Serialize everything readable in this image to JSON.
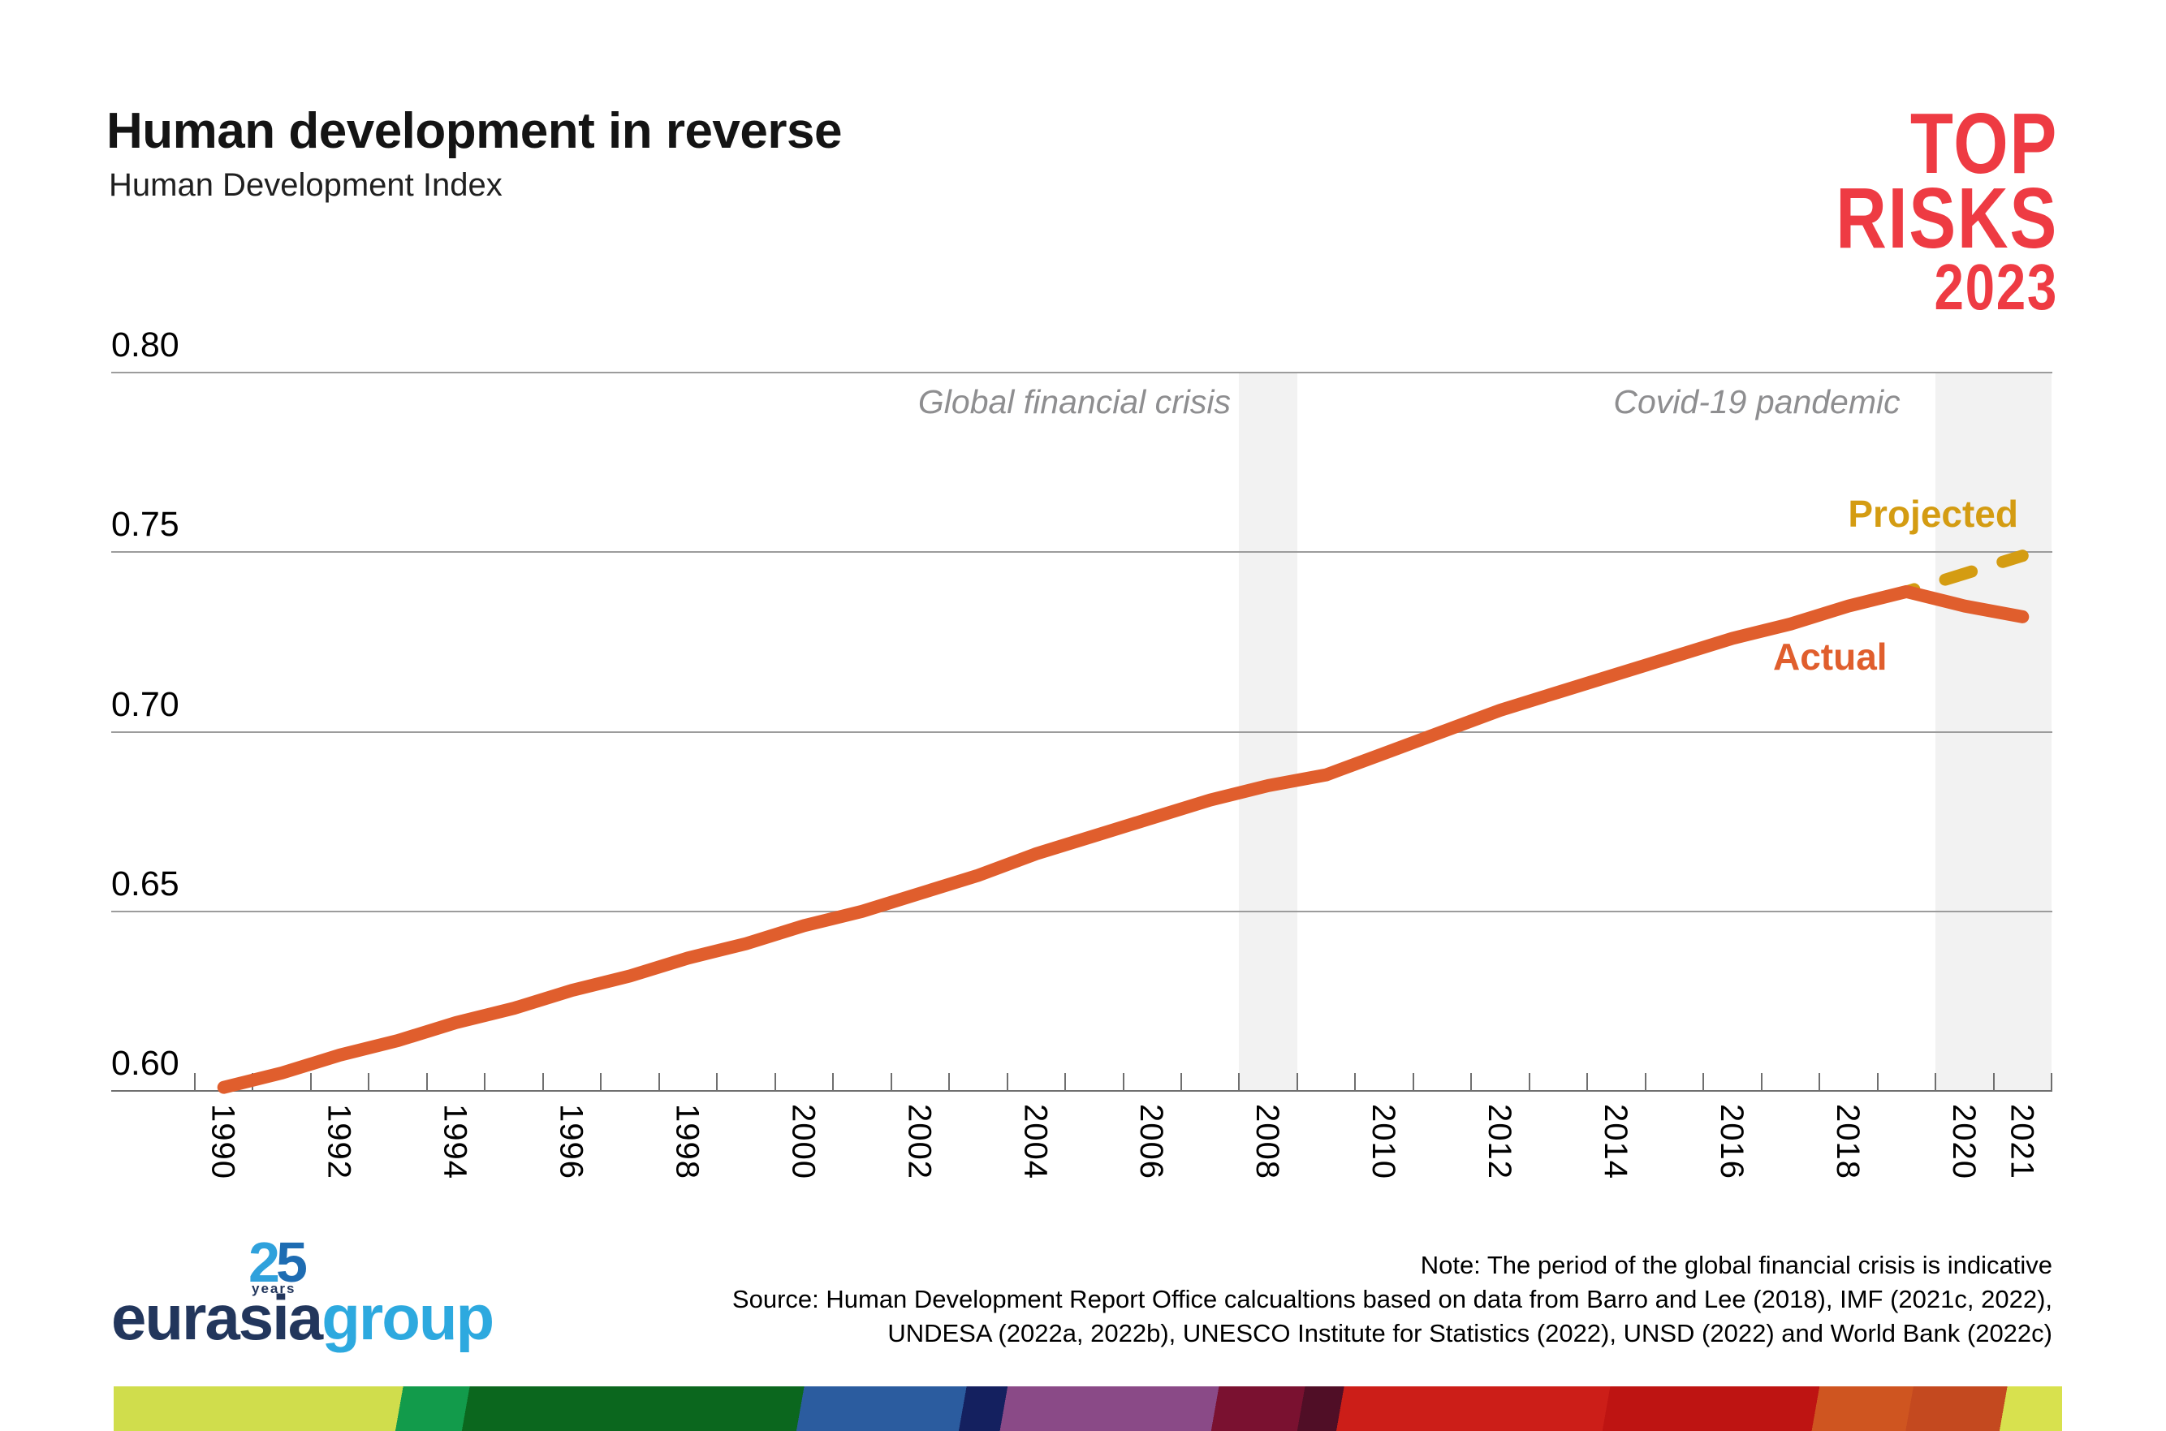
{
  "header": {
    "title": "Human development in reverse",
    "subtitle": "Human Development Index",
    "brand_logo": {
      "line1": "TOP",
      "line2": "RISKS",
      "line3": "2023",
      "color": "#ee3b43"
    }
  },
  "chart_data": {
    "type": "line",
    "title": "Human development in reverse",
    "subtitle": "Human Development Index",
    "ylabel": "Human Development Index",
    "ylim": [
      0.6,
      0.8
    ],
    "yticks": [
      0.6,
      0.65,
      0.7,
      0.75,
      0.8
    ],
    "ytick_labels": [
      "0.60",
      "0.65",
      "0.70",
      "0.75",
      "0.80"
    ],
    "x_label_years": [
      1990,
      1992,
      1994,
      1996,
      1998,
      2000,
      2002,
      2004,
      2006,
      2008,
      2010,
      2012,
      2014,
      2016,
      2018,
      2020,
      2021
    ],
    "years": [
      1990,
      1991,
      1992,
      1993,
      1994,
      1995,
      1996,
      1997,
      1998,
      1999,
      2000,
      2001,
      2002,
      2003,
      2004,
      2005,
      2006,
      2007,
      2008,
      2009,
      2010,
      2011,
      2012,
      2013,
      2014,
      2015,
      2016,
      2017,
      2018,
      2019,
      2020,
      2021
    ],
    "grid": "horizontal-only",
    "legend": "inline-labels",
    "series": [
      {
        "name": "Actual",
        "color": "#e05e2d",
        "style": "solid",
        "years": [
          1990,
          1991,
          1992,
          1993,
          1994,
          1995,
          1996,
          1997,
          1998,
          1999,
          2000,
          2001,
          2002,
          2003,
          2004,
          2005,
          2006,
          2007,
          2008,
          2009,
          2010,
          2011,
          2012,
          2013,
          2014,
          2015,
          2016,
          2017,
          2018,
          2019,
          2020,
          2021
        ],
        "values": [
          0.601,
          0.605,
          0.61,
          0.614,
          0.619,
          0.623,
          0.628,
          0.632,
          0.637,
          0.641,
          0.646,
          0.65,
          0.655,
          0.66,
          0.666,
          0.671,
          0.676,
          0.681,
          0.685,
          0.688,
          0.694,
          0.7,
          0.706,
          0.711,
          0.716,
          0.721,
          0.726,
          0.73,
          0.735,
          0.739,
          0.735,
          0.732
        ]
      },
      {
        "name": "Projected",
        "color": "#d49c12",
        "style": "dashed",
        "years": [
          2019,
          2020,
          2021
        ],
        "values": [
          0.739,
          0.744,
          0.749
        ]
      }
    ],
    "annotations": [
      {
        "text": "Global financial crisis",
        "band_years": [
          2007.5,
          2008.5
        ],
        "band_color": "#f2f2f2"
      },
      {
        "text": "Covid-19 pandemic",
        "band_years": [
          2019.5,
          2021.5
        ],
        "band_color": "#f2f2f2"
      }
    ]
  },
  "footer": {
    "note": "Note: The period of the global financial crisis is indicative",
    "source_line1": "Source: Human Development Report Office calcualtions based on data from Barro and Lee (2018), IMF (2021c, 2022),",
    "source_line2": "UNDESA (2022a, 2022b), UNESCO Institute for Statistics (2022), UNSD (2022) and World Bank (2022c)",
    "logo": {
      "anniversary_number_first_digit": "2",
      "anniversary_number_second_digit": "5",
      "anniversary_caption": "years",
      "name_part1": "eurasia",
      "name_part2": "group",
      "navy": "#22365c",
      "light_blue": "#2da9df",
      "digit1_color": "#2fa1dc",
      "digit2_color": "#1e6cb2"
    },
    "stripe_segments": [
      {
        "color": "#d0dd4c",
        "end_pct": 14.8
      },
      {
        "color": "#129b4b",
        "end_pct": 18.2
      },
      {
        "color": "#0b671e",
        "end_pct": 35.3
      },
      {
        "color": "#2b5c9f",
        "end_pct": 43.6
      },
      {
        "color": "#14205f",
        "end_pct": 45.7
      },
      {
        "color": "#8a4a87",
        "end_pct": 56.5
      },
      {
        "color": "#7a1130",
        "end_pct": 60.9
      },
      {
        "color": "#500e26",
        "end_pct": 62.9
      },
      {
        "color": "#cc1e18",
        "end_pct": 76.5
      },
      {
        "color": "#be1412",
        "end_pct": 87.2
      },
      {
        "color": "#cf5520",
        "end_pct": 92.0
      },
      {
        "color": "#c4491f",
        "end_pct": 96.8
      },
      {
        "color": "#d8e14e",
        "end_pct": 100
      }
    ]
  }
}
